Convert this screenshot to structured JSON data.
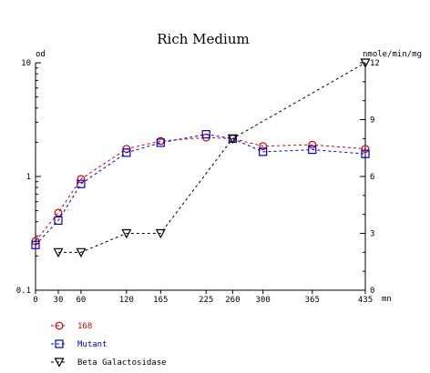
{
  "chart_data": {
    "type": "line",
    "title": "Rich Medium",
    "xlabel": "mn",
    "ylabel_left": "od",
    "ylabel_right": "nmole/min/mg",
    "x": [
      0,
      30,
      60,
      120,
      165,
      225,
      260,
      300,
      365,
      435
    ],
    "x_ticks": [
      "0",
      "30",
      "60",
      "120",
      "165",
      "225",
      "260",
      "300",
      "365",
      "435"
    ],
    "xlim": [
      0,
      435
    ],
    "y_left_scale": "log",
    "y_left_lim": [
      0.1,
      10
    ],
    "y_left_ticks": [
      "0.1",
      "1",
      "10"
    ],
    "y_right_lim": [
      0,
      12
    ],
    "y_right_ticks": [
      "0",
      "3",
      "6",
      "9",
      "12"
    ],
    "grid": false,
    "legend_position": "bottom-left",
    "series": [
      {
        "name": "168",
        "axis": "left",
        "color": "#cc0000",
        "marker": "circle",
        "line_style": "dashed",
        "x": [
          0,
          30,
          60,
          120,
          165,
          225,
          260,
          300,
          365,
          435
        ],
        "values": [
          0.27,
          0.48,
          0.95,
          1.75,
          2.05,
          2.2,
          2.15,
          1.85,
          1.9,
          1.75
        ]
      },
      {
        "name": "Mutant",
        "axis": "left",
        "color": "#0000cc",
        "marker": "square",
        "line_style": "dashed",
        "x": [
          0,
          30,
          60,
          120,
          165,
          225,
          260,
          300,
          365,
          435
        ],
        "values": [
          0.25,
          0.41,
          0.86,
          1.62,
          1.98,
          2.35,
          2.15,
          1.65,
          1.72,
          1.58
        ]
      },
      {
        "name": "Beta Galactosidase",
        "axis": "right",
        "color": "#000000",
        "marker": "triangle-down",
        "line_style": "dashed",
        "x": [
          30,
          60,
          120,
          165,
          260,
          435
        ],
        "values": [
          2,
          2,
          3,
          3,
          8,
          12
        ]
      }
    ]
  }
}
